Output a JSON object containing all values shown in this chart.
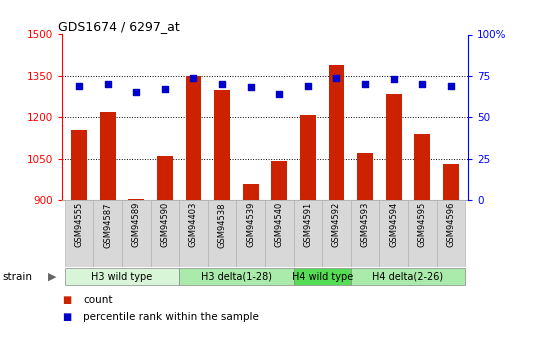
{
  "title": "GDS1674 / 6297_at",
  "samples": [
    "GSM94555",
    "GSM94587",
    "GSM94589",
    "GSM94590",
    "GSM94403",
    "GSM94538",
    "GSM94539",
    "GSM94540",
    "GSM94591",
    "GSM94592",
    "GSM94593",
    "GSM94594",
    "GSM94595",
    "GSM94596"
  ],
  "counts": [
    1155,
    1220,
    905,
    1060,
    1350,
    1300,
    960,
    1040,
    1210,
    1390,
    1070,
    1285,
    1140,
    1030
  ],
  "percentiles": [
    69,
    70,
    65,
    67,
    74,
    70,
    68,
    64,
    69,
    74,
    70,
    73,
    70,
    69
  ],
  "groups": [
    {
      "label": "H3 wild type",
      "start": 0,
      "end": 4,
      "color": "#d8f5d8"
    },
    {
      "label": "H3 delta(1-28)",
      "start": 4,
      "end": 8,
      "color": "#aaeaaa"
    },
    {
      "label": "H4 wild type",
      "start": 8,
      "end": 10,
      "color": "#55dd55"
    },
    {
      "label": "H4 delta(2-26)",
      "start": 10,
      "end": 14,
      "color": "#aaeaaa"
    }
  ],
  "ylim_left": [
    900,
    1500
  ],
  "ylim_right": [
    0,
    100
  ],
  "yticks_left": [
    900,
    1050,
    1200,
    1350,
    1500
  ],
  "yticks_right": [
    0,
    25,
    50,
    75,
    100
  ],
  "bar_color": "#cc2200",
  "dot_color": "#0000cc",
  "bg_color": "#ffffff",
  "strain_label": "strain",
  "legend_count": "count",
  "legend_percentile": "percentile rank within the sample",
  "dot_size": 16
}
